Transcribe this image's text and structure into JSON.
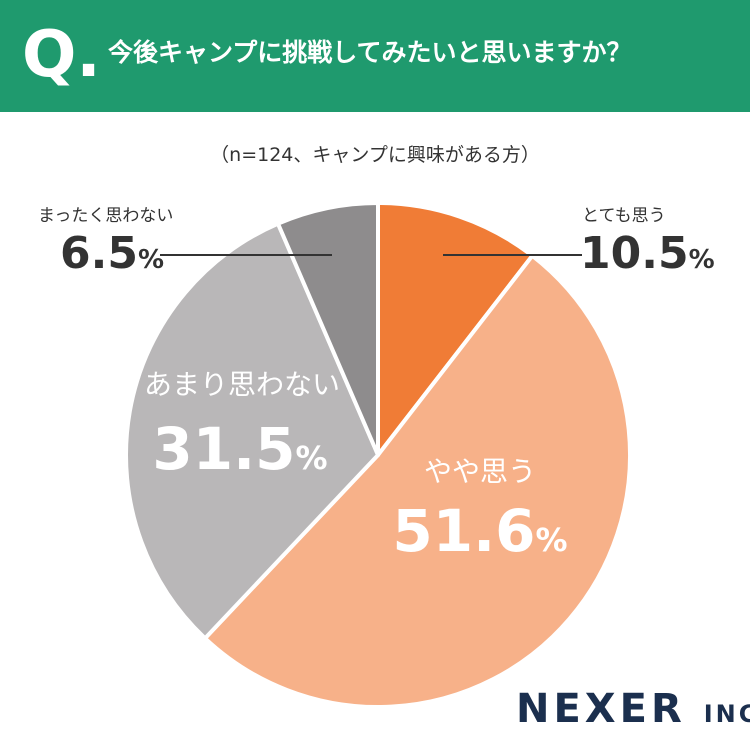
{
  "header": {
    "q_mark": "Q.",
    "question": "今後キャンプに挑戦してみたいと思いますか？"
  },
  "subtitle": "（n=124、キャンプに興味がある方）",
  "brand": {
    "name": "NEXER",
    "suffix": "INC."
  },
  "colors": {
    "header_bg": "#1f9a6e",
    "slice_strong_agree": "#f07c36",
    "slice_agree": "#f7b189",
    "slice_disagree": "#b9b7b8",
    "slice_strong_disagree": "#8e8c8d"
  },
  "chart_data": {
    "type": "pie",
    "title": "今後キャンプに挑戦してみたいと思いますか？",
    "subtitle": "（n=124、キャンプに興味がある方）",
    "start": "12 o'clock, clockwise",
    "slices": [
      {
        "label": "とても思う",
        "value": 10.5,
        "display": "10.5",
        "unit": "%"
      },
      {
        "label": "やや思う",
        "value": 51.6,
        "display": "51.6",
        "unit": "%"
      },
      {
        "label": "あまり思わない",
        "value": 31.5,
        "display": "31.5",
        "unit": "%"
      },
      {
        "label": "まったく思わない",
        "value": 6.5,
        "display": "6.5",
        "unit": "%"
      }
    ]
  }
}
